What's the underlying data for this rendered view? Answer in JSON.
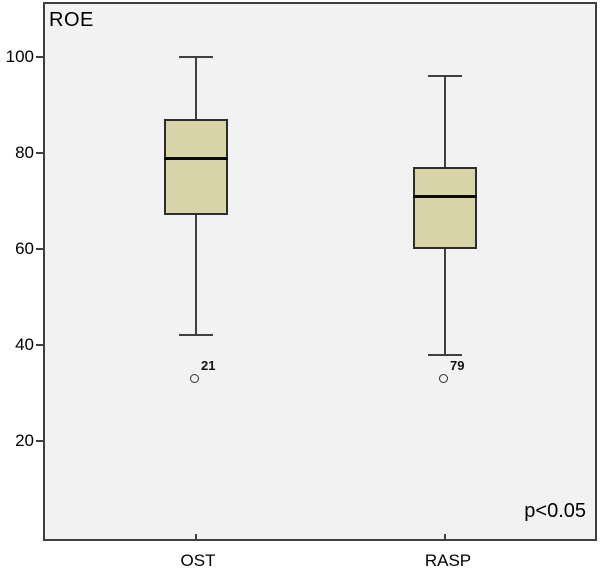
{
  "chart_data": {
    "type": "boxplot",
    "title": "ROE",
    "categories": [
      "OST",
      "RASP"
    ],
    "series": [
      {
        "name": "OST",
        "whisker_low": 42,
        "q1": 67,
        "median": 79,
        "q3": 87,
        "whisker_high": 100,
        "outliers": [
          {
            "value": 33,
            "label": "21"
          }
        ]
      },
      {
        "name": "RASP",
        "whisker_low": 38,
        "q1": 60,
        "median": 71,
        "q3": 77,
        "whisker_high": 96,
        "outliers": [
          {
            "value": 33,
            "label": "79"
          }
        ]
      }
    ],
    "y_ticks": [
      20,
      40,
      60,
      80,
      100
    ],
    "ylim": [
      -1,
      111
    ],
    "xlabel": "",
    "ylabel": "",
    "annotation": "p<0.05",
    "grid": false,
    "legend": "none",
    "colors": {
      "box_fill": "#d9d3a8",
      "box_border": "#2d2d2d",
      "median": "#0a0a0a",
      "whisker": "#404040",
      "plot_bg": "#f2f2f2",
      "frame_border": "#3f3f3f",
      "text": "#000000"
    }
  }
}
